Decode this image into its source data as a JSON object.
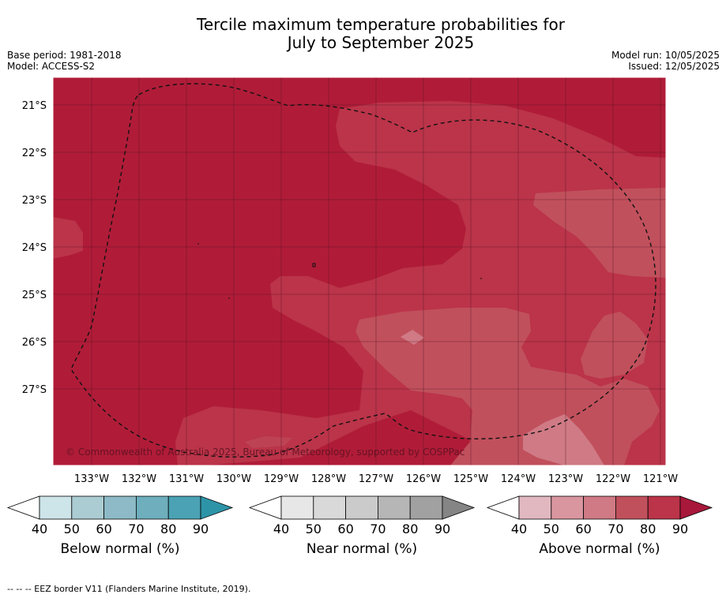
{
  "header": {
    "title_line1": "Tercile maximum temperature probabilities for",
    "title_line2": "July to September 2025",
    "base_period": "Base period: 1981-2018",
    "model": "Model: ACCESS-S2",
    "model_run": "Model run: 10/05/2025",
    "issued": "Issued: 12/05/2025"
  },
  "map": {
    "lat_labels": [
      "21°S",
      "22°S",
      "23°S",
      "24°S",
      "25°S",
      "26°S",
      "27°S"
    ],
    "lon_labels": [
      "133°W",
      "132°W",
      "131°W",
      "130°W",
      "129°W",
      "128°W",
      "127°W",
      "126°W",
      "125°W",
      "124°W",
      "123°W",
      "122°W",
      "121°W"
    ],
    "copyright": "© Commonwealth of Australia 2025, Bureau of Meteorology, supported by COSPPac",
    "colors": {
      "above80": "#b01c38",
      "above70": "#bb3449",
      "above60": "#c0505c",
      "above50": "#cf7a85"
    }
  },
  "legends": [
    {
      "label": "Below normal (%)",
      "ticks": [
        "40",
        "50",
        "60",
        "70",
        "80",
        "90"
      ],
      "colors": [
        "#cde4e9",
        "#acccd3",
        "#8dbac6",
        "#6eaebd",
        "#4aa2b4",
        "#2d94a8"
      ]
    },
    {
      "label": "Near normal (%)",
      "ticks": [
        "40",
        "50",
        "60",
        "70",
        "80",
        "90"
      ],
      "colors": [
        "#e7e7e7",
        "#d9d9d9",
        "#cbcbcb",
        "#b6b6b6",
        "#a1a1a1",
        "#858585"
      ]
    },
    {
      "label": "Above normal (%)",
      "ticks": [
        "40",
        "50",
        "60",
        "70",
        "80",
        "90"
      ],
      "colors": [
        "#e2b8c0",
        "#d9969f",
        "#cf7a85",
        "#c0505c",
        "#bb3449",
        "#a8183a"
      ]
    }
  ],
  "footnote": "--  --  -- EEZ border V11 (Flanders Marine Institute, 2019)."
}
